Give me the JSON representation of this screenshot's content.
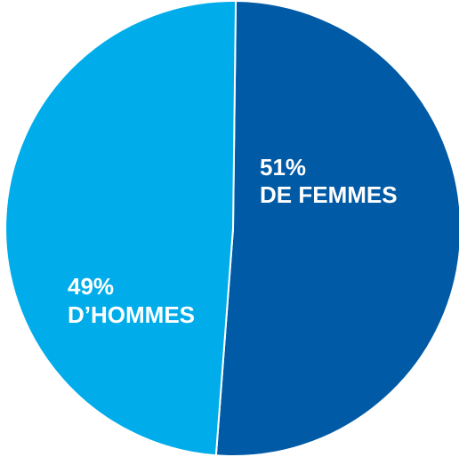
{
  "chart_data": {
    "type": "pie",
    "slices": [
      {
        "value": 51,
        "percent_label": "51%",
        "name_label": "DE FEMMES",
        "color": "#005aa5"
      },
      {
        "value": 49,
        "percent_label": "49%",
        "name_label": "D’HOMMES",
        "color": "#00adea"
      }
    ],
    "separator_color": "#ffffff"
  }
}
